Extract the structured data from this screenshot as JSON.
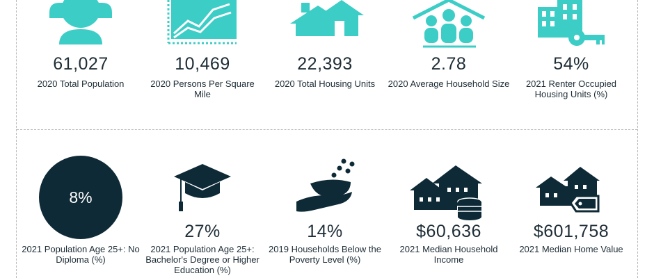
{
  "colors": {
    "teal": "#3ccdc6",
    "navy": "#0e2a36",
    "text": "#1e2d36",
    "dash": "#b9b9b9"
  },
  "row1": [
    {
      "icon": "person-icon",
      "value": "61,027",
      "label": "2020 Total Population"
    },
    {
      "icon": "density-chart-icon",
      "value": "10,469",
      "label": "2020 Persons Per Square Mile"
    },
    {
      "icon": "houses-icon",
      "value": "22,393",
      "label": "2020 Total Housing Units"
    },
    {
      "icon": "family-house-icon",
      "value": "2.78",
      "label": "2020 Average Household Size"
    },
    {
      "icon": "building-key-icon",
      "value": "54%",
      "label": "2021 Renter Occupied Housing Units (%)"
    }
  ],
  "row2": [
    {
      "icon": "circle-badge-icon",
      "value": "8%",
      "label": "2021 Population Age 25+: No Diploma (%)"
    },
    {
      "icon": "graduation-cap-icon",
      "value": "27%",
      "label": "2021 Population Age 25+: Bachelor's Degree or Higher Education (%)"
    },
    {
      "icon": "hand-bowl-icon",
      "value": "14%",
      "label": "2019 Households Below the Poverty Level (%)"
    },
    {
      "icon": "house-coins-icon",
      "value": "$60,636",
      "label": "2021 Median Household Income"
    },
    {
      "icon": "house-tag-icon",
      "value": "$601,758",
      "label": "2021 Median Home Value"
    }
  ]
}
